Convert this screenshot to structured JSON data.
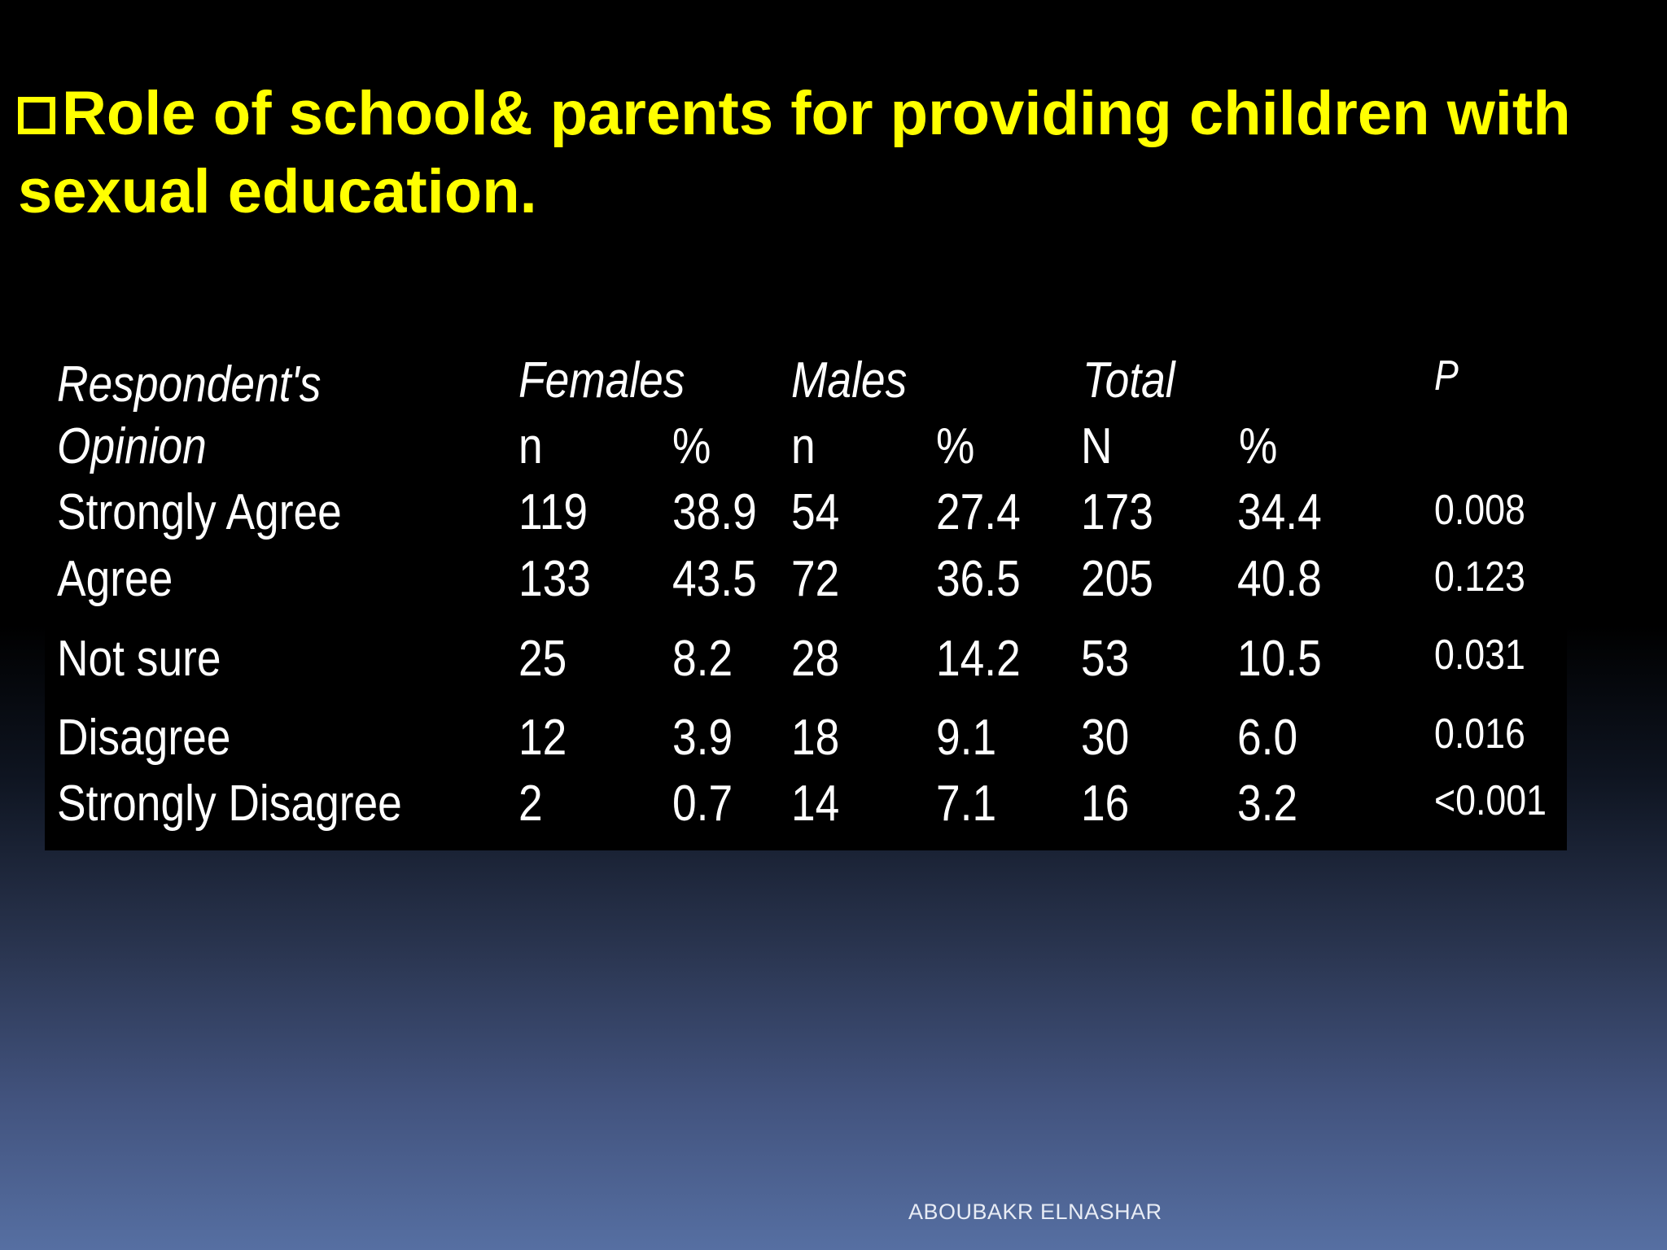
{
  "slide": {
    "title": "Role of school& parents for providing children with sexual education.",
    "footer": "ABOUBAKR ELNASHAR"
  },
  "table": {
    "header": {
      "opinion_line1": "Respondent's",
      "opinion_line2": "Opinion",
      "females": "Females",
      "males": "Males",
      "total": "Total",
      "p": "P",
      "n_f": "n",
      "pct_f": "%",
      "n_m": "n",
      "pct_m": "%",
      "n_t": "N",
      "pct_t": "%"
    },
    "rows": [
      {
        "opinion": "Strongly Agree",
        "f_n": "119",
        "f_pct": "38.9",
        "m_n": "54",
        "m_pct": "27.4",
        "t_n": "173",
        "t_pct": "34.4",
        "p": "0.008"
      },
      {
        "opinion": "Agree",
        "f_n": "133",
        "f_pct": "43.5",
        "m_n": "72",
        "m_pct": "36.5",
        "t_n": "205",
        "t_pct": "40.8",
        "p": "0.123"
      },
      {
        "opinion": "Not sure",
        "f_n": "25",
        "f_pct": "8.2",
        "m_n": "28",
        "m_pct": "14.2",
        "t_n": "53",
        "t_pct": "10.5",
        "p": "0.031"
      },
      {
        "opinion": "Disagree",
        "f_n": "12",
        "f_pct": "3.9",
        "m_n": "18",
        "m_pct": "9.1",
        "t_n": "30",
        "t_pct": "6.0",
        "p": "0.016"
      },
      {
        "opinion": "Strongly Disagree",
        "f_n": "2",
        "f_pct": "0.7",
        "m_n": "14",
        "m_pct": "7.1",
        "t_n": "16",
        "t_pct": "3.2",
        "p": "<0.001"
      }
    ]
  },
  "colors": {
    "title": "#ffff00",
    "text": "#ffffff"
  }
}
